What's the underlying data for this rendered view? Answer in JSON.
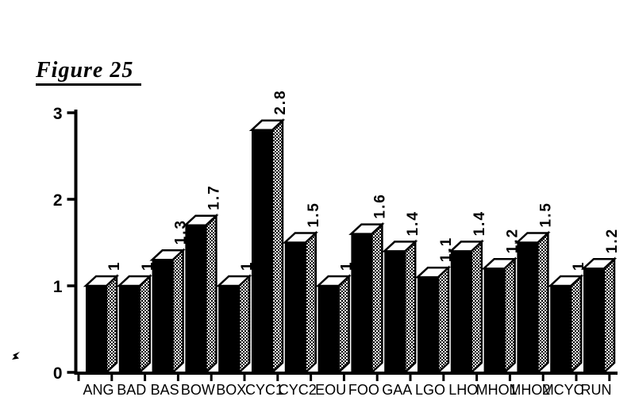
{
  "figure_title": "Figure 25",
  "chart_data": {
    "type": "bar",
    "style": "3d-perspective-bars",
    "title": "",
    "xlabel": "",
    "ylabel": "",
    "categories": [
      "ANG",
      "BAD",
      "BAS",
      "BOW",
      "BOX",
      "CYC1",
      "CYC2",
      "EOU",
      "FOO",
      "GAA",
      "LGO",
      "LHO",
      "MHO1",
      "MHO2",
      "MCYC",
      "RUN"
    ],
    "values": [
      1,
      1,
      1.3,
      1.7,
      1,
      2.8,
      1.5,
      1,
      1.6,
      1.4,
      1.1,
      1.4,
      1.2,
      1.5,
      1,
      1.2
    ],
    "value_labels": [
      "1",
      "1",
      "1.3",
      "1.7",
      "1",
      "2.8",
      "1.5",
      "1",
      "1.6",
      "1.4",
      "1.1",
      "1.4",
      "1.2",
      "1.5",
      "1",
      "1.2"
    ],
    "value_label_rotation_deg": -90,
    "ylim": [
      0,
      3
    ],
    "yticks": [
      "0",
      "1",
      "2",
      "3"
    ],
    "grid": false,
    "legend": "none",
    "colors": {
      "background": "#ffffff",
      "axis": "#000000",
      "bar_front": "#000000",
      "bar_top": "#ffffff",
      "bar_side": "checkerboard-halftone",
      "text": "#000000"
    }
  }
}
